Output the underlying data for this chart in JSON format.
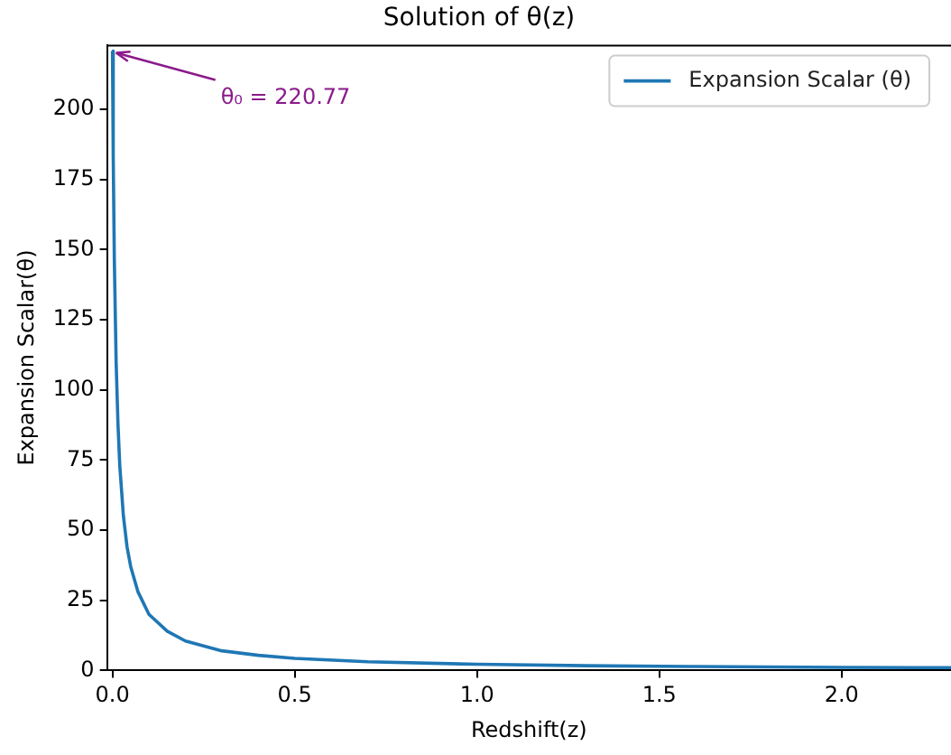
{
  "chart_data": {
    "type": "line",
    "title": "Solution of θ(z)",
    "xlabel": "Redshift(z)",
    "ylabel": "Expansion Scalar(θ)",
    "x": [
      0,
      0.002,
      0.005,
      0.01,
      0.015,
      0.02,
      0.03,
      0.04,
      0.05,
      0.07,
      0.1,
      0.15,
      0.2,
      0.3,
      0.4,
      0.5,
      0.7,
      1.0,
      1.3,
      1.6,
      2.0,
      2.3
    ],
    "series": [
      {
        "name": "Expansion Scalar (θ)",
        "color": "#1f77b4",
        "values": [
          220.77,
          184,
          147,
          110,
          88,
          73,
          55,
          44,
          37,
          28,
          20,
          14,
          10.5,
          7,
          5.4,
          4.3,
          3.1,
          2.2,
          1.7,
          1.4,
          1.1,
          1
        ]
      }
    ],
    "xlim": [
      -0.015,
      2.3
    ],
    "ylim": [
      0,
      223
    ],
    "xticks": [
      {
        "value": 0,
        "label": "0.0"
      },
      {
        "value": 0.5,
        "label": "0.5"
      },
      {
        "value": 1,
        "label": "1.0"
      },
      {
        "value": 1.5,
        "label": "1.5"
      },
      {
        "value": 2,
        "label": "2.0"
      }
    ],
    "yticks": [
      0,
      25,
      50,
      75,
      100,
      125,
      150,
      175,
      200
    ],
    "annotations": [
      {
        "text": "θ₀ = 220.77",
        "x": 0,
        "y": 220.77
      }
    ],
    "grid": false,
    "legend": "top right",
    "marker": "none",
    "line_style": "solid"
  }
}
